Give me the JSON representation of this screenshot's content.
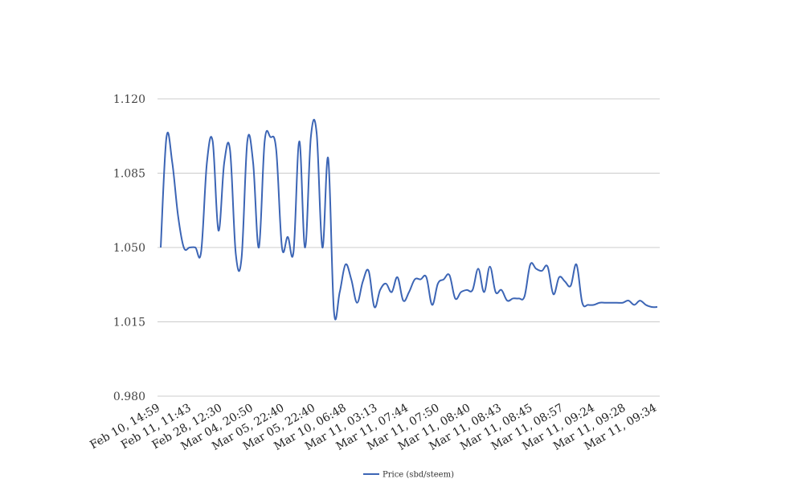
{
  "chart_data": {
    "type": "line",
    "title": "",
    "xlabel": "",
    "ylabel": "",
    "ylim": [
      0.98,
      1.12
    ],
    "yticks": [
      "0.980",
      "1.015",
      "1.050",
      "1.085",
      "1.120"
    ],
    "grid": true,
    "legend_position": "bottom-center",
    "x_tick_labels": [
      "Feb 10, 14:59",
      "Feb 11, 11:43",
      "Feb 28, 12:30",
      "Mar 04, 20:50",
      "Mar 05, 22:40",
      "Mar 05, 22:40",
      "Mar 10, 06:48",
      "Mar 11, 03:13",
      "Mar 11, 07:44",
      "Mar 11, 07:50",
      "Mar 11, 08:40",
      "Mar 11, 08:43",
      "Mar 11, 08:45",
      "Mar 11, 08:57",
      "Mar 11, 09:24",
      "Mar 11, 09:28",
      "Mar 11, 09:34"
    ],
    "series": [
      {
        "name": "Price (sbd/steem)",
        "color": "#3c65b5",
        "values": [
          1.05,
          1.102,
          1.09,
          1.065,
          1.05,
          1.05,
          1.05,
          1.048,
          1.09,
          1.1,
          1.058,
          1.09,
          1.096,
          1.047,
          1.045,
          1.1,
          1.09,
          1.05,
          1.1,
          1.102,
          1.096,
          1.05,
          1.055,
          1.048,
          1.1,
          1.05,
          1.102,
          1.104,
          1.05,
          1.092,
          1.02,
          1.029,
          1.042,
          1.035,
          1.024,
          1.034,
          1.039,
          1.022,
          1.03,
          1.033,
          1.029,
          1.036,
          1.025,
          1.029,
          1.035,
          1.035,
          1.036,
          1.023,
          1.033,
          1.035,
          1.037,
          1.026,
          1.029,
          1.03,
          1.03,
          1.04,
          1.029,
          1.041,
          1.029,
          1.03,
          1.025,
          1.026,
          1.026,
          1.027,
          1.042,
          1.04,
          1.039,
          1.041,
          1.028,
          1.036,
          1.034,
          1.032,
          1.042,
          1.024,
          1.023,
          1.023,
          1.024,
          1.024,
          1.024,
          1.024,
          1.024,
          1.025,
          1.023,
          1.025,
          1.023,
          1.022,
          1.022
        ]
      }
    ]
  }
}
